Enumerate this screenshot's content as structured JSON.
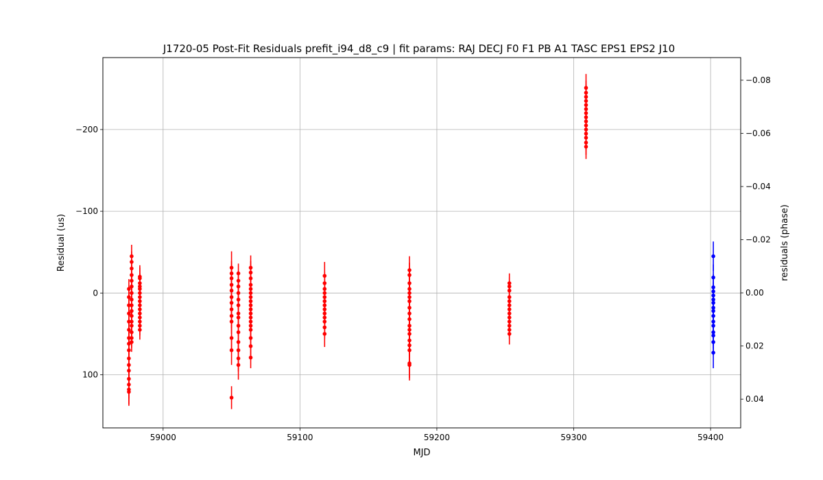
{
  "chart_data": {
    "type": "scatter",
    "title": "J1720-05 Post-Fit Residuals prefit_i94_d8_c9 | fit params: RAJ DECJ F0 F1 PB A1 TASC EPS1 EPS2 J10",
    "xlabel": "MJD",
    "ylabel": "Residual (us)",
    "y2label": "residuals (phase)",
    "xlim": [
      58956,
      59422
    ],
    "ylim": [
      165,
      -288
    ],
    "y2lim": [
      0.0508,
      -0.0885
    ],
    "y_inverted": true,
    "grid": true,
    "xticks": [
      59000,
      59100,
      59200,
      59300,
      59400
    ],
    "xtick_labels": [
      "59000",
      "59100",
      "59200",
      "59300",
      "59400"
    ],
    "yticks": [
      -200,
      -100,
      0,
      100
    ],
    "ytick_labels": [
      "−200",
      "−100",
      "0",
      "100"
    ],
    "y2ticks": [
      -0.08,
      -0.06,
      -0.04,
      -0.02,
      0.0,
      0.02,
      0.04
    ],
    "y2tick_labels": [
      "−0.08",
      "−0.06",
      "−0.04",
      "−0.02",
      "0.00",
      "0.02",
      "0.04"
    ],
    "series": [
      {
        "color": "#ff0000",
        "points": [
          [
            58975,
            -5,
            12
          ],
          [
            58975,
            5,
            13
          ],
          [
            58975,
            15,
            13
          ],
          [
            58975,
            25,
            14
          ],
          [
            58975,
            35,
            13
          ],
          [
            58975,
            45,
            14
          ],
          [
            58975,
            55,
            14
          ],
          [
            58975,
            62,
            15
          ],
          [
            58975,
            70,
            14
          ],
          [
            58975,
            80,
            15
          ],
          [
            58975,
            88,
            15
          ],
          [
            58975,
            95,
            15
          ],
          [
            58975,
            105,
            16
          ],
          [
            58975,
            112,
            17
          ],
          [
            58975,
            118,
            18
          ],
          [
            58975,
            121,
            17
          ],
          [
            58977,
            -45,
            14
          ],
          [
            58977,
            -38,
            13
          ],
          [
            58977,
            -30,
            12
          ],
          [
            58977,
            -22,
            12
          ],
          [
            58977,
            -15,
            12
          ],
          [
            58977,
            -8,
            12
          ],
          [
            58977,
            0,
            12
          ],
          [
            58977,
            8,
            12
          ],
          [
            58977,
            15,
            12
          ],
          [
            58977,
            22,
            12
          ],
          [
            58977,
            28,
            12
          ],
          [
            58977,
            35,
            12
          ],
          [
            58977,
            40,
            12
          ],
          [
            58977,
            48,
            12
          ],
          [
            58977,
            55,
            12
          ],
          [
            58977,
            60,
            12
          ],
          [
            58983,
            -20,
            14
          ],
          [
            58983,
            -18,
            13
          ],
          [
            58983,
            -12,
            12
          ],
          [
            58983,
            -8,
            12
          ],
          [
            58983,
            -5,
            12
          ],
          [
            58983,
            0,
            12
          ],
          [
            58983,
            5,
            12
          ],
          [
            58983,
            10,
            12
          ],
          [
            58983,
            15,
            12
          ],
          [
            58983,
            20,
            12
          ],
          [
            58983,
            25,
            12
          ],
          [
            58983,
            30,
            12
          ],
          [
            58983,
            35,
            12
          ],
          [
            58983,
            40,
            12
          ],
          [
            58983,
            45,
            12
          ],
          [
            59050,
            -31,
            20
          ],
          [
            59050,
            -24,
            15
          ],
          [
            59050,
            -18,
            15
          ],
          [
            59050,
            -10,
            14
          ],
          [
            59050,
            -3,
            14
          ],
          [
            59050,
            5,
            14
          ],
          [
            59050,
            12,
            14
          ],
          [
            59050,
            20,
            14
          ],
          [
            59050,
            28,
            15
          ],
          [
            59050,
            35,
            15
          ],
          [
            59050,
            55,
            16
          ],
          [
            59050,
            70,
            18
          ],
          [
            59050,
            128,
            14
          ],
          [
            59055,
            -24,
            12
          ],
          [
            59055,
            -15,
            12
          ],
          [
            59055,
            -8,
            12
          ],
          [
            59055,
            0,
            12
          ],
          [
            59055,
            8,
            12
          ],
          [
            59055,
            15,
            12
          ],
          [
            59055,
            25,
            12
          ],
          [
            59055,
            30,
            12
          ],
          [
            59055,
            40,
            12
          ],
          [
            59055,
            48,
            13
          ],
          [
            59055,
            60,
            14
          ],
          [
            59055,
            70,
            15
          ],
          [
            59055,
            80,
            16
          ],
          [
            59055,
            88,
            18
          ],
          [
            59064,
            -31,
            15
          ],
          [
            59064,
            -25,
            14
          ],
          [
            59064,
            -18,
            13
          ],
          [
            59064,
            -10,
            13
          ],
          [
            59064,
            -5,
            13
          ],
          [
            59064,
            0,
            13
          ],
          [
            59064,
            5,
            13
          ],
          [
            59064,
            10,
            13
          ],
          [
            59064,
            15,
            13
          ],
          [
            59064,
            20,
            13
          ],
          [
            59064,
            25,
            13
          ],
          [
            59064,
            30,
            13
          ],
          [
            59064,
            35,
            13
          ],
          [
            59064,
            40,
            13
          ],
          [
            59064,
            45,
            13
          ],
          [
            59064,
            55,
            13
          ],
          [
            59064,
            65,
            13
          ],
          [
            59064,
            79,
            13
          ],
          [
            59118,
            -21,
            17
          ],
          [
            59118,
            -12,
            14
          ],
          [
            59118,
            -5,
            14
          ],
          [
            59118,
            0,
            14
          ],
          [
            59118,
            5,
            14
          ],
          [
            59118,
            10,
            14
          ],
          [
            59118,
            15,
            14
          ],
          [
            59118,
            20,
            14
          ],
          [
            59118,
            25,
            14
          ],
          [
            59118,
            30,
            14
          ],
          [
            59118,
            35,
            14
          ],
          [
            59118,
            42,
            14
          ],
          [
            59118,
            50,
            16
          ],
          [
            59180,
            -28,
            17
          ],
          [
            59180,
            -22,
            15
          ],
          [
            59180,
            -12,
            15
          ],
          [
            59180,
            -5,
            14
          ],
          [
            59180,
            0,
            14
          ],
          [
            59180,
            5,
            14
          ],
          [
            59180,
            10,
            14
          ],
          [
            59180,
            18,
            14
          ],
          [
            59180,
            25,
            14
          ],
          [
            59180,
            32,
            14
          ],
          [
            59180,
            40,
            14
          ],
          [
            59180,
            45,
            14
          ],
          [
            59180,
            50,
            14
          ],
          [
            59180,
            58,
            14
          ],
          [
            59180,
            64,
            14
          ],
          [
            59180,
            70,
            14
          ],
          [
            59180,
            86,
            18
          ],
          [
            59180,
            88,
            19
          ],
          [
            59253,
            -12,
            12
          ],
          [
            59253,
            -8,
            11
          ],
          [
            59253,
            -3,
            11
          ],
          [
            59253,
            5,
            11
          ],
          [
            59253,
            10,
            11
          ],
          [
            59253,
            15,
            11
          ],
          [
            59253,
            20,
            11
          ],
          [
            59253,
            25,
            11
          ],
          [
            59253,
            30,
            11
          ],
          [
            59253,
            35,
            11
          ],
          [
            59253,
            40,
            11
          ],
          [
            59253,
            45,
            11
          ],
          [
            59253,
            50,
            13
          ],
          [
            59309,
            -251,
            17
          ],
          [
            59309,
            -245,
            15
          ],
          [
            59309,
            -240,
            15
          ],
          [
            59309,
            -235,
            15
          ],
          [
            59309,
            -230,
            15
          ],
          [
            59309,
            -225,
            15
          ],
          [
            59309,
            -220,
            15
          ],
          [
            59309,
            -215,
            15
          ],
          [
            59309,
            -210,
            15
          ],
          [
            59309,
            -205,
            15
          ],
          [
            59309,
            -200,
            15
          ],
          [
            59309,
            -195,
            15
          ],
          [
            59309,
            -190,
            15
          ],
          [
            59309,
            -184,
            15
          ],
          [
            59309,
            -179,
            15
          ]
        ]
      },
      {
        "color": "#0000ff",
        "points": [
          [
            59402,
            -45,
            18
          ],
          [
            59402,
            -19,
            16
          ],
          [
            59402,
            -7,
            16
          ],
          [
            59402,
            -2,
            16
          ],
          [
            59402,
            3,
            16
          ],
          [
            59402,
            8,
            16
          ],
          [
            59402,
            12,
            16
          ],
          [
            59402,
            18,
            16
          ],
          [
            59402,
            22,
            16
          ],
          [
            59402,
            28,
            16
          ],
          [
            59402,
            35,
            16
          ],
          [
            59402,
            40,
            16
          ],
          [
            59402,
            48,
            16
          ],
          [
            59402,
            52,
            16
          ],
          [
            59402,
            60,
            16
          ],
          [
            59402,
            73,
            19
          ]
        ]
      }
    ]
  }
}
